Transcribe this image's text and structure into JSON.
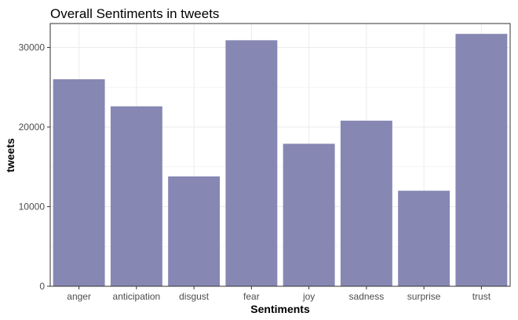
{
  "chart_data": {
    "type": "bar",
    "title": "Overall Sentiments in tweets",
    "xlabel": "Sentiments",
    "ylabel": "tweets",
    "categories": [
      "anger",
      "anticipation",
      "disgust",
      "fear",
      "joy",
      "sadness",
      "surprise",
      "trust"
    ],
    "values": [
      26000,
      22600,
      13800,
      30900,
      17900,
      20800,
      12000,
      31700
    ],
    "ylim": [
      0,
      33000
    ],
    "yticks": [
      0,
      10000,
      20000,
      30000
    ],
    "ytick_labels": [
      "0",
      "10000",
      "20000",
      "30000"
    ],
    "grid": true,
    "legend": "none",
    "bar_color": "#8787b4",
    "grid_color": "#ebebeb",
    "panel_border_color": "#333333"
  }
}
